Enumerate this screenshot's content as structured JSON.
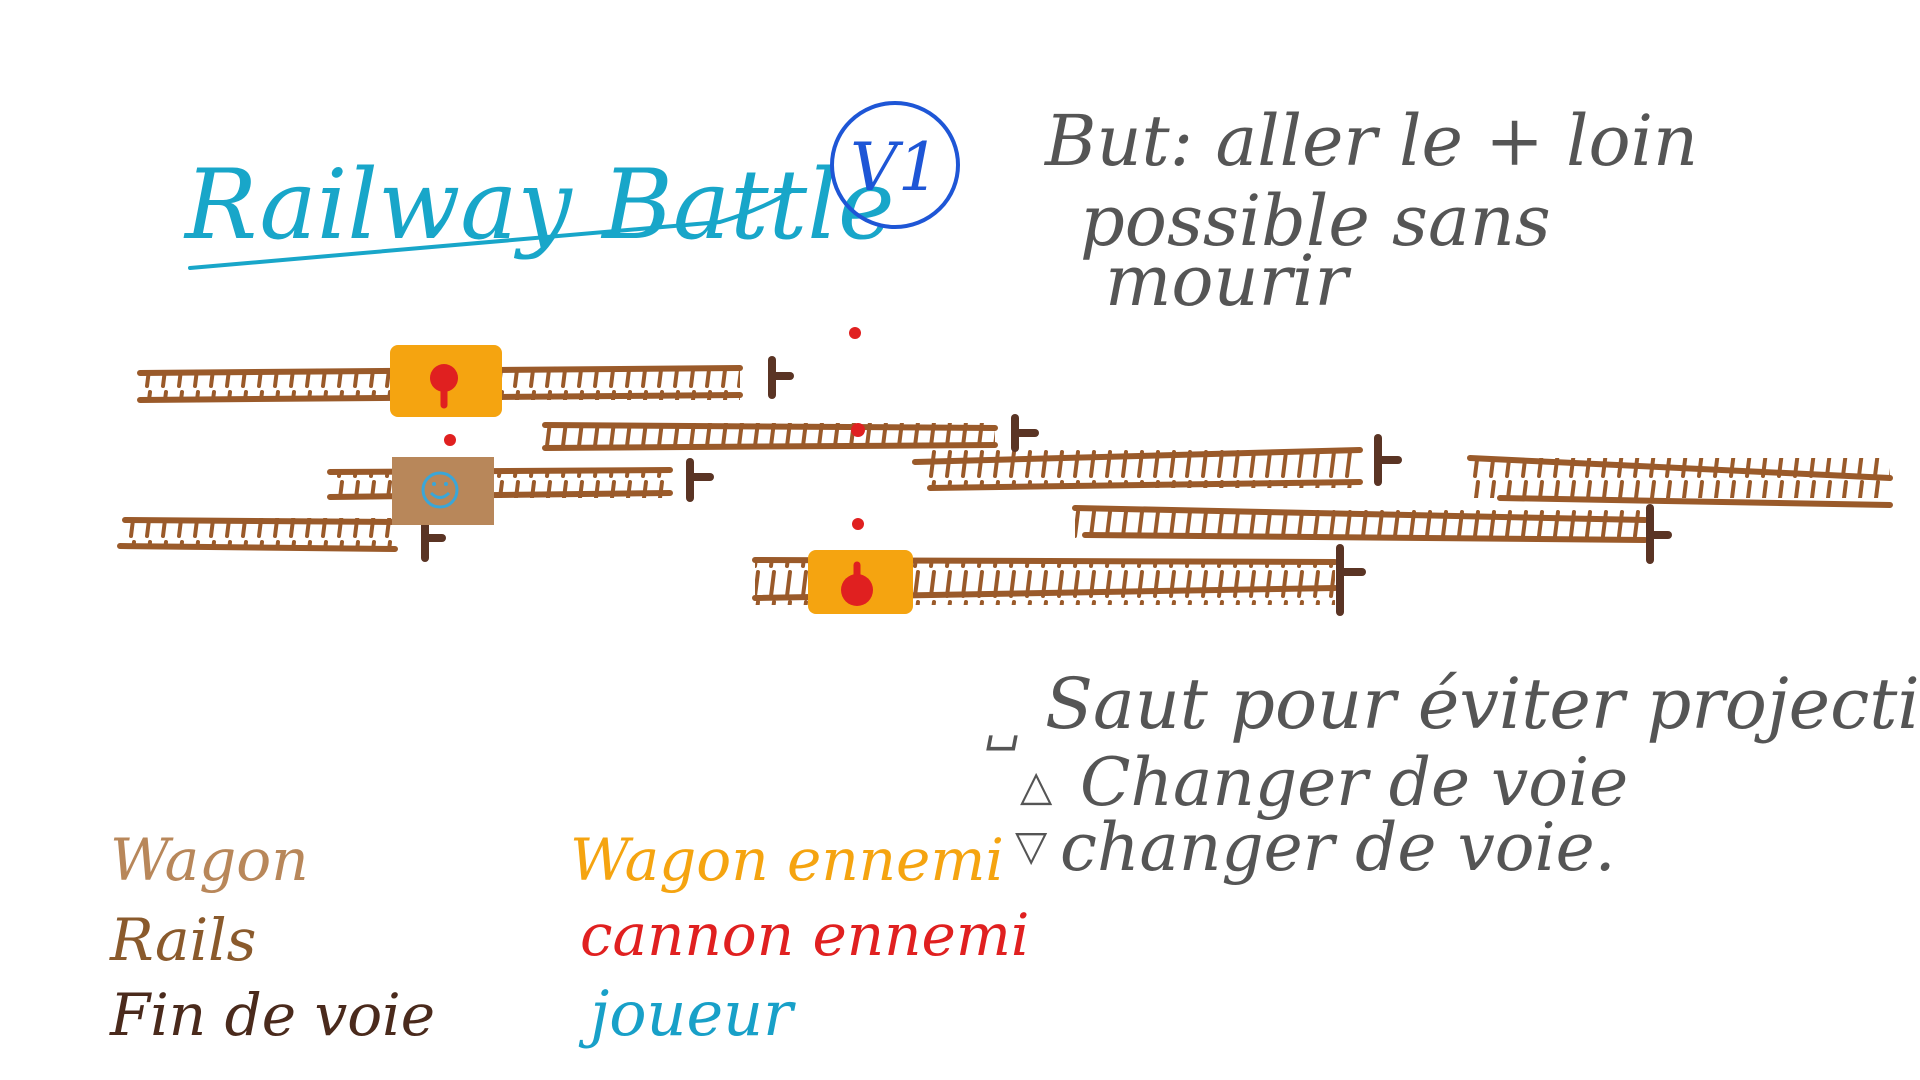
{
  "title": "Railway Battle",
  "version_badge": "V1",
  "goal_lines": [
    "But: aller le + loin",
    "possible sans",
    "mourir"
  ],
  "controls": [
    {
      "key_symbol": "␣",
      "text": "Saut pour éviter projectil"
    },
    {
      "key_symbol": "△",
      "text": "Changer de voie"
    },
    {
      "key_symbol": "▽",
      "text": "changer de voie."
    }
  ],
  "legend": [
    {
      "label": "Wagon",
      "color": "#b8875a"
    },
    {
      "label": "Rails",
      "color": "#8a5a2c"
    },
    {
      "label": "Fin de voie",
      "color": "#4a2a1c"
    },
    {
      "label": "Wagon ennemi",
      "color": "#f5a410"
    },
    {
      "label": "cannon ennemi",
      "color": "#e02020"
    },
    {
      "label": "joueur",
      "color": "#18a0c8"
    }
  ],
  "colors": {
    "title": "#18a6c9",
    "badge": "#1e56d6",
    "notes": "#555555",
    "rail": "#9a5a2a",
    "track_end": "#5a3424",
    "player_wagon": "#b8875a",
    "enemy_wagon": "#f5a410",
    "cannon": "#e02020",
    "player_face": "#3aa6d8"
  },
  "scene": {
    "tracks_count": 9,
    "enemy_wagons_count": 2,
    "player_wagon_count": 1,
    "projectiles_count": 4
  }
}
